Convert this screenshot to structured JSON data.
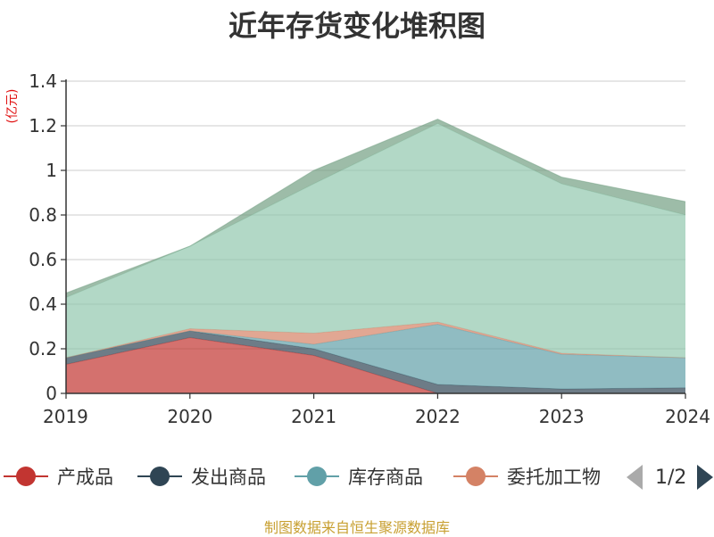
{
  "title": "近年存货变化堆积图",
  "unit_label": "(亿元)",
  "source": "制图数据来自恒生聚源数据库",
  "legend": {
    "items": [
      {
        "label": "产成品",
        "color": "#c23531"
      },
      {
        "label": "发出商品",
        "color": "#2f4554"
      },
      {
        "label": "库存商品",
        "color": "#61a0a8"
      },
      {
        "label": "委托加工物",
        "color": "#d48265"
      }
    ],
    "page_text": "1/2"
  },
  "chart_data": {
    "type": "area",
    "stacked": true,
    "categories": [
      "2019",
      "2020",
      "2021",
      "2022",
      "2023",
      "2024"
    ],
    "ylim": [
      0,
      1.4
    ],
    "yticks": [
      "0",
      "0.2",
      "0.4",
      "0.6",
      "0.8",
      "1",
      "1.2",
      "1.4"
    ],
    "ylabel": "(亿元)",
    "grid": true,
    "series": [
      {
        "name": "产成品",
        "color": "#c23531",
        "values": [
          0.13,
          0.25,
          0.17,
          0.0,
          0.0,
          0.0
        ]
      },
      {
        "name": "发出商品",
        "color": "#2f4554",
        "values": [
          0.03,
          0.03,
          0.03,
          0.04,
          0.02,
          0.025
        ]
      },
      {
        "name": "库存商品",
        "color": "#61a0a8",
        "values": [
          0.0,
          0.0,
          0.02,
          0.27,
          0.155,
          0.135
        ]
      },
      {
        "name": "委托加工物",
        "color": "#d48265",
        "values": [
          0.0,
          0.01,
          0.05,
          0.01,
          0.005,
          0.0
        ]
      },
      {
        "name": "",
        "color": "#91c7ae",
        "values": [
          0.27,
          0.37,
          0.67,
          0.89,
          0.76,
          0.64
        ]
      },
      {
        "name": "",
        "color": "#749f83",
        "values": [
          0.02,
          0.0,
          0.06,
          0.02,
          0.03,
          0.06
        ]
      }
    ]
  }
}
